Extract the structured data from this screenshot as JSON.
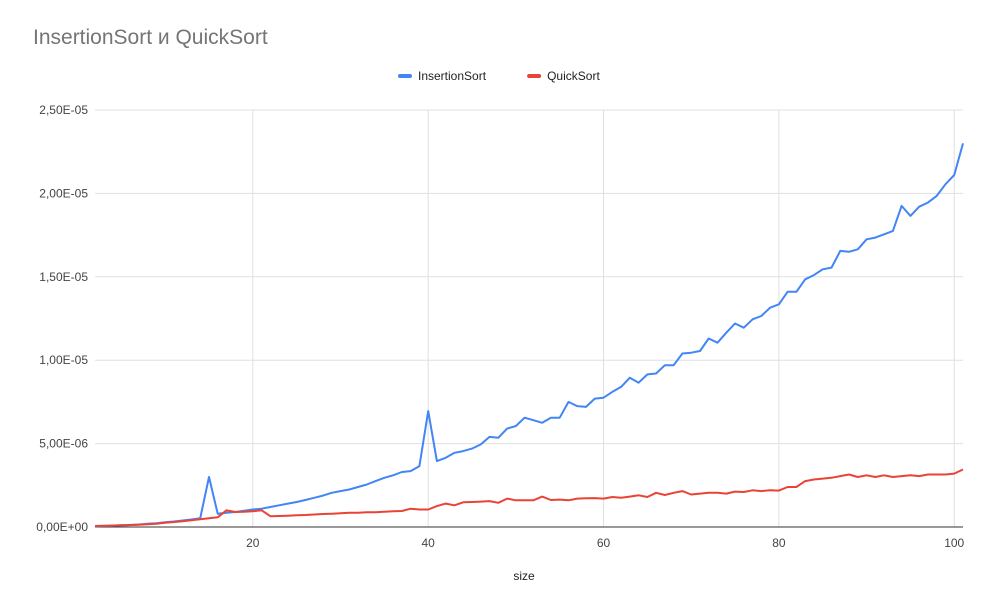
{
  "chart_data": {
    "type": "line",
    "title": "InsertionSort и QuickSort",
    "xlabel": "size",
    "ylabel": "",
    "xlim": [
      2,
      101
    ],
    "ylim": [
      0,
      2.5e-05
    ],
    "x_ticks": [
      20,
      40,
      60,
      80,
      100
    ],
    "y_ticks": [
      0,
      5e-06,
      1e-05,
      1.5e-05,
      2e-05,
      2.5e-05
    ],
    "y_tick_labels": [
      "0,00E+00",
      "5,00E-06",
      "1,00E-05",
      "1,50E-05",
      "2,00E-05",
      "2,50E-05"
    ],
    "grid": true,
    "legend_position": "top",
    "x": [
      2,
      3,
      4,
      5,
      6,
      7,
      8,
      9,
      10,
      11,
      12,
      13,
      14,
      15,
      16,
      17,
      18,
      19,
      20,
      21,
      22,
      23,
      24,
      25,
      26,
      27,
      28,
      29,
      30,
      31,
      32,
      33,
      34,
      35,
      36,
      37,
      38,
      39,
      40,
      41,
      42,
      43,
      44,
      45,
      46,
      47,
      48,
      49,
      50,
      51,
      52,
      53,
      54,
      55,
      56,
      57,
      58,
      59,
      60,
      61,
      62,
      63,
      64,
      65,
      66,
      67,
      68,
      69,
      70,
      71,
      72,
      73,
      74,
      75,
      76,
      77,
      78,
      79,
      80,
      81,
      82,
      83,
      84,
      85,
      86,
      87,
      88,
      89,
      90,
      91,
      92,
      93,
      94,
      95,
      96,
      97,
      98,
      99,
      100,
      101
    ],
    "series": [
      {
        "name": "InsertionSort",
        "color": "#4285f4",
        "values": [
          5e-08,
          6e-08,
          8e-08,
          1e-07,
          1.2e-07,
          1.5e-07,
          1.9e-07,
          2.3e-07,
          2.8e-07,
          3.3e-07,
          3.9e-07,
          4.5e-07,
          5.2e-07,
          3e-06,
          8e-07,
          8.5e-07,
          9e-07,
          9.8e-07,
          1.05e-06,
          1.1e-06,
          1.2e-06,
          1.3e-06,
          1.4e-06,
          1.5e-06,
          1.62e-06,
          1.75e-06,
          1.88e-06,
          2.05e-06,
          2.15e-06,
          2.25e-06,
          2.4e-06,
          2.55e-06,
          2.75e-06,
          2.95e-06,
          3.1e-06,
          3.3e-06,
          3.35e-06,
          3.65e-06,
          6.95e-06,
          3.95e-06,
          4.15e-06,
          4.45e-06,
          4.55e-06,
          4.7e-06,
          4.95e-06,
          5.4e-06,
          5.35e-06,
          5.9e-06,
          6.05e-06,
          6.55e-06,
          6.4e-06,
          6.25e-06,
          6.55e-06,
          6.55e-06,
          7.5e-06,
          7.25e-06,
          7.2e-06,
          7.7e-06,
          7.75e-06,
          8.1e-06,
          8.4e-06,
          8.95e-06,
          8.65e-06,
          9.15e-06,
          9.2e-06,
          9.7e-06,
          9.7e-06,
          1.04e-05,
          1.045e-05,
          1.055e-05,
          1.13e-05,
          1.105e-05,
          1.165e-05,
          1.22e-05,
          1.195e-05,
          1.245e-05,
          1.265e-05,
          1.315e-05,
          1.335e-05,
          1.41e-05,
          1.41e-05,
          1.485e-05,
          1.51e-05,
          1.545e-05,
          1.555e-05,
          1.655e-05,
          1.65e-05,
          1.665e-05,
          1.725e-05,
          1.735e-05,
          1.755e-05,
          1.775e-05,
          1.925e-05,
          1.865e-05,
          1.92e-05,
          1.945e-05,
          1.985e-05,
          2.055e-05,
          2.11e-05,
          2.3e-05
        ]
      },
      {
        "name": "QuickSort",
        "color": "#ea4335",
        "values": [
          6e-08,
          8e-08,
          9e-08,
          1e-07,
          1.2e-07,
          1.4e-07,
          1.7e-07,
          2e-07,
          2.5e-07,
          3e-07,
          3.5e-07,
          4e-07,
          4.6e-07,
          5.2e-07,
          5.8e-07,
          1e-06,
          9e-07,
          9.2e-07,
          9.5e-07,
          1e-06,
          6.5e-07,
          6.6e-07,
          6.8e-07,
          7e-07,
          7.2e-07,
          7.5e-07,
          7.8e-07,
          8e-07,
          8.2e-07,
          8.5e-07,
          8.6e-07,
          8.8e-07,
          8.9e-07,
          9.2e-07,
          9.4e-07,
          9.6e-07,
          1.1e-06,
          1.05e-06,
          1.05e-06,
          1.25e-06,
          1.4e-06,
          1.3e-06,
          1.48e-06,
          1.5e-06,
          1.52e-06,
          1.55e-06,
          1.45e-06,
          1.7e-06,
          1.6e-06,
          1.6e-06,
          1.6e-06,
          1.82e-06,
          1.62e-06,
          1.64e-06,
          1.6e-06,
          1.7e-06,
          1.72e-06,
          1.73e-06,
          1.7e-06,
          1.8e-06,
          1.75e-06,
          1.82e-06,
          1.9e-06,
          1.8e-06,
          2.05e-06,
          1.92e-06,
          2.05e-06,
          2.15e-06,
          1.95e-06,
          2e-06,
          2.05e-06,
          2.05e-06,
          2e-06,
          2.12e-06,
          2.1e-06,
          2.2e-06,
          2.15e-06,
          2.2e-06,
          2.18e-06,
          2.4e-06,
          2.4e-06,
          2.75e-06,
          2.85e-06,
          2.9e-06,
          2.95e-06,
          3.05e-06,
          3.15e-06,
          3e-06,
          3.1e-06,
          3e-06,
          3.1e-06,
          3e-06,
          3.05e-06,
          3.1e-06,
          3.05e-06,
          3.15e-06,
          3.15e-06,
          3.15e-06,
          3.2e-06,
          3.45e-06
        ]
      }
    ]
  }
}
